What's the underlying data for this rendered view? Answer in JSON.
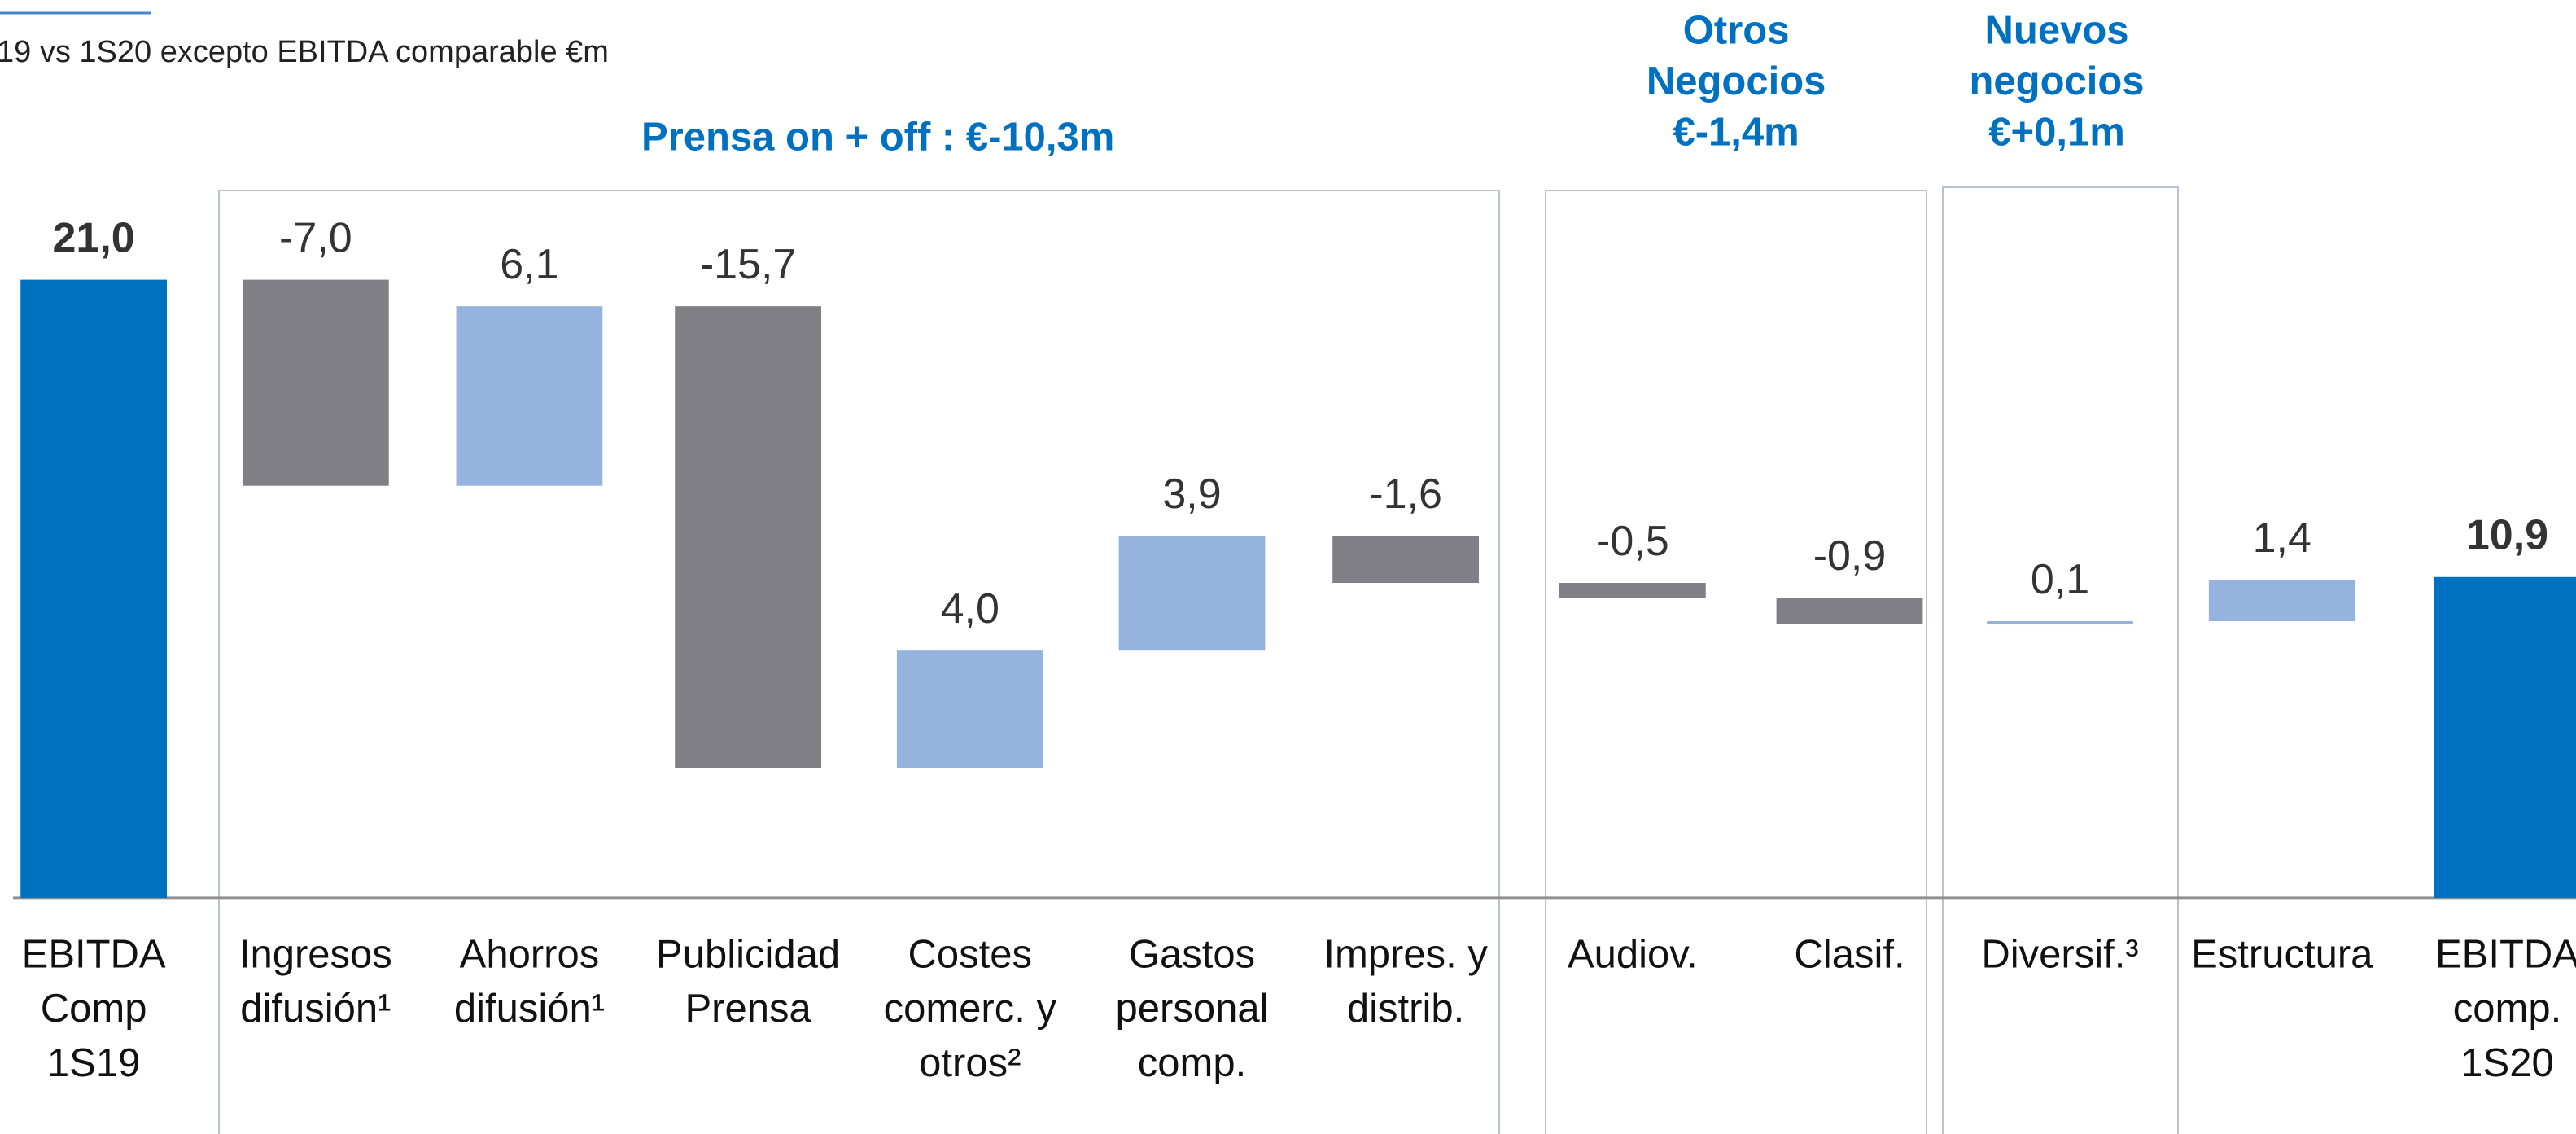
{
  "chart_data": {
    "type": "waterfall",
    "subtitle": "19 vs 1S20 excepto EBITDA comparable €m",
    "groups": [
      {
        "label": [
          "Prensa on + off : €-10,3m"
        ]
      },
      {
        "label": [
          "Otros",
          "Negocios",
          "€-1,4m"
        ]
      },
      {
        "label": [
          "Nuevos",
          "negocios",
          "€+0,1m"
        ]
      }
    ],
    "categories": [
      [
        "EBITDA",
        "Comp",
        "1S19"
      ],
      [
        "Ingresos",
        "difusión¹"
      ],
      [
        "Ahorros",
        "difusión¹"
      ],
      [
        "Publicidad",
        "Prensa"
      ],
      [
        "Costes",
        "comerc. y",
        "otros²"
      ],
      [
        "Gastos",
        "personal",
        "comp."
      ],
      [
        "Impres. y",
        "distrib."
      ],
      [
        "Audiov."
      ],
      [
        "Clasif."
      ],
      [
        "Diversif.³"
      ],
      [
        "Estructura"
      ],
      [
        "EBITDA",
        "comp.",
        "1S20"
      ]
    ],
    "values": [
      21.0,
      -7.0,
      6.1,
      -15.7,
      4.0,
      3.9,
      -1.6,
      -0.5,
      -0.9,
      0.1,
      1.4,
      10.9
    ],
    "value_labels": [
      "21,0",
      "-7,0",
      "6,1",
      "-15,7",
      "4,0",
      "3,9",
      "-1,6",
      "-0,5",
      "-0,9",
      "0,1",
      "1,4",
      "10,9"
    ],
    "colors": [
      "#0070c0",
      "#7f7f85",
      "#95b3dc",
      "#7f7f85",
      "#95b3dc",
      "#95b3dc",
      "#7f7f85",
      "#7f7f85",
      "#7f7f85",
      "#95b3dc",
      "#95b3dc",
      "#0070c0"
    ],
    "total_color": "#0070c0",
    "ylim": [
      0,
      24
    ]
  }
}
